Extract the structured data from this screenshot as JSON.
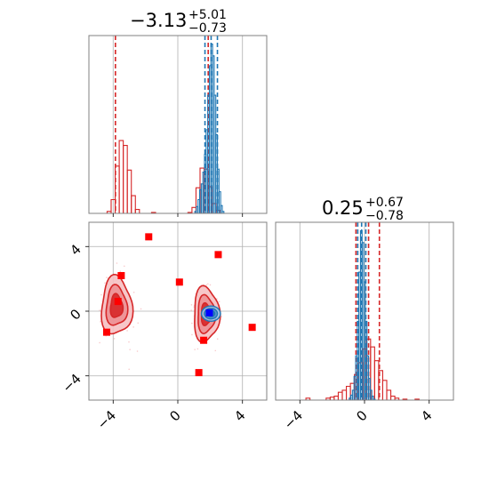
{
  "chart_data": [
    {
      "panel": "marginal-param-1",
      "type": "histogram",
      "title": {
        "value": "−3.13",
        "upper": "+5.01",
        "lower": "−0.73"
      },
      "xlim": [
        -5.5,
        5.5
      ],
      "xticks": [
        -4,
        0,
        4
      ],
      "grid": true,
      "series": [
        {
          "color": "#d62728",
          "bin_width": 0.25,
          "bins": [
            {
              "x": -4.25,
              "count": 2
            },
            {
              "x": -4.0,
              "count": 14
            },
            {
              "x": -3.75,
              "count": 48
            },
            {
              "x": -3.5,
              "count": 74
            },
            {
              "x": -3.25,
              "count": 69
            },
            {
              "x": -3.0,
              "count": 44
            },
            {
              "x": -2.75,
              "count": 18
            },
            {
              "x": -2.5,
              "count": 4
            },
            {
              "x": -1.5,
              "count": 1
            },
            {
              "x": 0.75,
              "count": 1
            },
            {
              "x": 1.0,
              "count": 6
            },
            {
              "x": 1.25,
              "count": 26
            },
            {
              "x": 1.5,
              "count": 46
            },
            {
              "x": 1.75,
              "count": 45
            },
            {
              "x": 2.0,
              "count": 27
            },
            {
              "x": 2.25,
              "count": 10
            },
            {
              "x": 2.5,
              "count": 3
            }
          ],
          "quantiles": [
            -3.86,
            1.88
          ]
        },
        {
          "color": "#1f77b4",
          "bin_width": 0.1,
          "bins": [
            {
              "x": 1.1,
              "count": 2
            },
            {
              "x": 1.2,
              "count": 7
            },
            {
              "x": 1.3,
              "count": 14
            },
            {
              "x": 1.4,
              "count": 24
            },
            {
              "x": 1.5,
              "count": 30
            },
            {
              "x": 1.6,
              "count": 42
            },
            {
              "x": 1.7,
              "count": 60
            },
            {
              "x": 1.8,
              "count": 85
            },
            {
              "x": 1.9,
              "count": 120
            },
            {
              "x": 2.0,
              "count": 150
            },
            {
              "x": 2.1,
              "count": 172
            },
            {
              "x": 2.2,
              "count": 160
            },
            {
              "x": 2.3,
              "count": 120
            },
            {
              "x": 2.4,
              "count": 80
            },
            {
              "x": 2.5,
              "count": 45
            },
            {
              "x": 2.6,
              "count": 22
            },
            {
              "x": 2.7,
              "count": 8
            },
            {
              "x": 2.8,
              "count": 2
            }
          ],
          "quantiles": [
            1.68,
            2.06,
            2.45
          ]
        }
      ]
    },
    {
      "panel": "joint-param-1-param-2",
      "type": "contour",
      "xlim": [
        -5.5,
        5.5
      ],
      "ylim": [
        -5.5,
        5.5
      ],
      "xticks": [
        -4,
        0,
        4
      ],
      "yticks": [
        -4,
        0,
        4
      ],
      "grid": true,
      "series": [
        {
          "color": "#d62728",
          "regions": [
            {
              "center": [
                -3.8,
                0.3
              ],
              "spread": [
                0.9,
                1.7
              ]
            },
            {
              "center": [
                1.75,
                -0.2
              ],
              "spread": [
                0.75,
                1.6
              ]
            }
          ],
          "points": [
            [
              -1.8,
              4.6
            ],
            [
              -3.5,
              2.2
            ],
            [
              -3.7,
              0.6
            ],
            [
              0.1,
              1.8
            ],
            [
              2.5,
              3.5
            ],
            [
              -4.4,
              -1.3
            ],
            [
              4.6,
              -1.0
            ],
            [
              1.6,
              -1.8
            ],
            [
              1.3,
              -3.8
            ]
          ]
        },
        {
          "color": "#1f77b4",
          "regions": [
            {
              "center": [
                2.05,
                -0.15
              ],
              "spread": [
                0.35,
                0.28
              ]
            }
          ],
          "points": [
            [
              1.95,
              -0.1
            ]
          ]
        }
      ]
    },
    {
      "panel": "marginal-param-2",
      "type": "histogram",
      "title": {
        "value": "0.25",
        "upper": "+0.67",
        "lower": "−0.78"
      },
      "xlim": [
        -5.5,
        5.5
      ],
      "xticks": [
        -4,
        0,
        4
      ],
      "grid": true,
      "series": [
        {
          "color": "#d62728",
          "bin_width": 0.25,
          "bins": [
            {
              "x": -3.5,
              "count": 2
            },
            {
              "x": -2.25,
              "count": 2
            },
            {
              "x": -2.0,
              "count": 3
            },
            {
              "x": -1.75,
              "count": 4
            },
            {
              "x": -1.5,
              "count": 8
            },
            {
              "x": -1.25,
              "count": 10
            },
            {
              "x": -1.0,
              "count": 14
            },
            {
              "x": -0.75,
              "count": 17
            },
            {
              "x": -0.5,
              "count": 26
            },
            {
              "x": -0.25,
              "count": 38
            },
            {
              "x": 0.0,
              "count": 52
            },
            {
              "x": 0.25,
              "count": 62
            },
            {
              "x": 0.5,
              "count": 54
            },
            {
              "x": 0.75,
              "count": 40
            },
            {
              "x": 1.0,
              "count": 30
            },
            {
              "x": 1.25,
              "count": 20
            },
            {
              "x": 1.5,
              "count": 10
            },
            {
              "x": 1.75,
              "count": 4
            },
            {
              "x": 2.0,
              "count": 2
            },
            {
              "x": 2.5,
              "count": 1
            },
            {
              "x": 3.25,
              "count": 1
            }
          ],
          "quantiles": [
            -0.53,
            0.25,
            0.92
          ]
        },
        {
          "color": "#1f77b4",
          "bin_width": 0.1,
          "bins": [
            {
              "x": -0.9,
              "count": 2
            },
            {
              "x": -0.8,
              "count": 5
            },
            {
              "x": -0.7,
              "count": 10
            },
            {
              "x": -0.6,
              "count": 24
            },
            {
              "x": -0.5,
              "count": 45
            },
            {
              "x": -0.4,
              "count": 80
            },
            {
              "x": -0.3,
              "count": 130
            },
            {
              "x": -0.2,
              "count": 172
            },
            {
              "x": -0.1,
              "count": 160
            },
            {
              "x": 0.0,
              "count": 120
            },
            {
              "x": 0.1,
              "count": 80
            },
            {
              "x": 0.2,
              "count": 45
            },
            {
              "x": 0.3,
              "count": 22
            },
            {
              "x": 0.4,
              "count": 10
            },
            {
              "x": 0.5,
              "count": 4
            },
            {
              "x": 0.6,
              "count": 1
            }
          ],
          "quantiles": [
            -0.42,
            -0.18,
            0.08
          ]
        }
      ]
    }
  ]
}
